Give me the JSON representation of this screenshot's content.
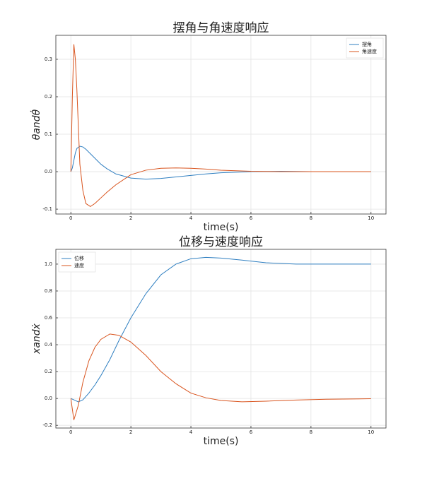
{
  "chart_data": [
    {
      "type": "line",
      "title": "摆角与角速度响应",
      "x_label": "time(s)",
      "y_label": "θandθ̇",
      "x": [
        0,
        0.05,
        0.1,
        0.15,
        0.2,
        0.3,
        0.4,
        0.5,
        0.65,
        0.8,
        1,
        1.2,
        1.5,
        2,
        2.5,
        3,
        3.5,
        4,
        4.5,
        5,
        6,
        7,
        8,
        9,
        10
      ],
      "series": [
        {
          "name": "摆角",
          "color": "#2f7fc1",
          "values": [
            0,
            0.01,
            0.03,
            0.05,
            0.062,
            0.068,
            0.066,
            0.06,
            0.048,
            0.036,
            0.02,
            0.008,
            -0.006,
            -0.017,
            -0.02,
            -0.018,
            -0.014,
            -0.01,
            -0.006,
            -0.003,
            0,
            0.001,
            0,
            0,
            0
          ]
        },
        {
          "name": "角速度",
          "color": "#d9541e",
          "values": [
            0,
            0.2,
            0.34,
            0.3,
            0.22,
            0.02,
            -0.05,
            -0.085,
            -0.093,
            -0.085,
            -0.07,
            -0.055,
            -0.035,
            -0.008,
            0.004,
            0.009,
            0.01,
            0.009,
            0.007,
            0.004,
            0.001,
            0,
            0,
            0,
            0
          ]
        }
      ],
      "xlim": [
        -0.5,
        10.5
      ],
      "ylim": [
        -0.113,
        0.364
      ],
      "xticks": [
        0,
        2,
        4,
        6,
        8,
        10
      ],
      "yticks": [
        -0.1,
        {
          "value": 0,
          "label": "0.0"
        },
        0.1,
        0.2,
        0.3
      ],
      "grid": true,
      "legend": "upper-right"
    },
    {
      "type": "line",
      "title": "位移与速度响应",
      "x_label": "time(s)",
      "y_label": "xandẋ",
      "x": [
        0,
        0.1,
        0.25,
        0.4,
        0.6,
        0.8,
        1,
        1.3,
        1.6,
        2,
        2.5,
        3,
        3.5,
        4,
        4.5,
        5,
        5.7,
        6.5,
        7.5,
        8.5,
        10
      ],
      "series": [
        {
          "name": "位移",
          "color": "#2f7fc1",
          "values": [
            0,
            -0.01,
            -0.025,
            -0.01,
            0.04,
            0.1,
            0.17,
            0.29,
            0.43,
            0.6,
            0.78,
            0.92,
            1.0,
            1.04,
            1.05,
            1.045,
            1.03,
            1.01,
            1.0,
            1.0,
            1.0
          ]
        },
        {
          "name": "速度",
          "color": "#d9541e",
          "values": [
            0,
            -0.16,
            -0.05,
            0.12,
            0.28,
            0.38,
            0.44,
            0.48,
            0.47,
            0.42,
            0.32,
            0.2,
            0.11,
            0.04,
            0.005,
            -0.015,
            -0.025,
            -0.02,
            -0.012,
            -0.006,
            -0.002
          ]
        }
      ],
      "xlim": [
        -0.5,
        10.5
      ],
      "ylim": [
        -0.22,
        1.11
      ],
      "xticks": [
        0,
        2,
        4,
        6,
        8,
        10
      ],
      "yticks": [
        -0.2,
        {
          "value": 0,
          "label": "0.0"
        },
        0.2,
        0.4,
        0.6,
        0.8,
        {
          "value": 1,
          "label": "1.0"
        }
      ],
      "grid": true,
      "legend": "upper-left"
    }
  ]
}
